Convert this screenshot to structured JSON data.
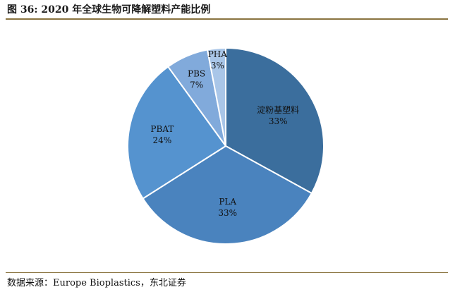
{
  "figure": {
    "caption": "图 36:  2020 年全球生物可降解塑料产能比例",
    "source": "数据来源：Europe Bioplastics，东北证券"
  },
  "chart_data": {
    "type": "pie",
    "slices": [
      {
        "label": "淀粉基塑料",
        "value": 33,
        "value_label": "33%",
        "color": "#3b6e9d"
      },
      {
        "label": "PLA",
        "value": 33,
        "value_label": "33%",
        "color": "#4a83be"
      },
      {
        "label": "PBAT",
        "value": 24,
        "value_label": "24%",
        "color": "#5593cf"
      },
      {
        "label": "PBS",
        "value": 7,
        "value_label": "7%",
        "color": "#81aadb"
      },
      {
        "label": "PHA",
        "value": 3,
        "value_label": "3%",
        "color": "#a9c6e8"
      }
    ],
    "start_angle_deg": 0,
    "direction": "clockwise",
    "legend": "none"
  }
}
